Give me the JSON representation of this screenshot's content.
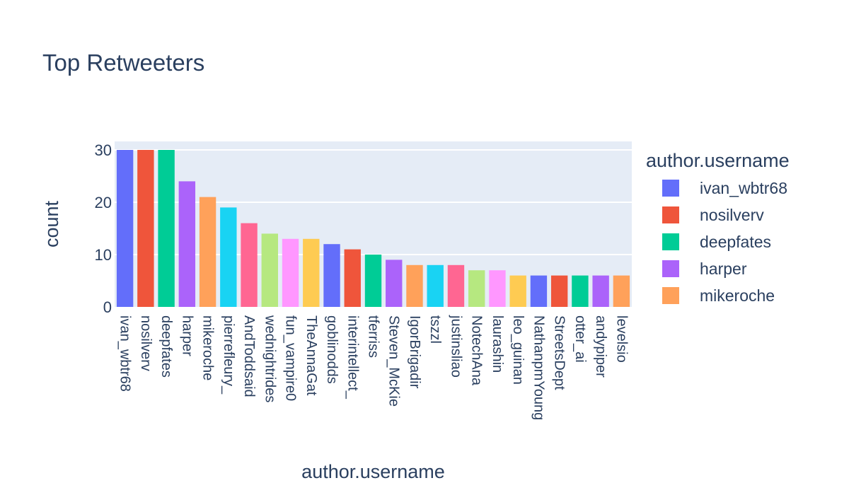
{
  "chart_data": {
    "type": "bar",
    "title": "Top Retweeters",
    "xlabel": "author.username",
    "ylabel": "count",
    "ylim": [
      0,
      30
    ],
    "yticks": [
      0,
      10,
      20,
      30
    ],
    "grid": true,
    "legend_position": "right",
    "legend_title": "author.username",
    "legend_entries": [
      "ivan_wbtr68",
      "nosilverv",
      "deepfates",
      "harper",
      "mikeroche"
    ],
    "categories": [
      "ivan_wbtr68",
      "nosilverv",
      "deepfates",
      "harper",
      "mikeroche",
      "pierrefleury_",
      "AndToddsaid",
      "wednightrides",
      "fun_vampire0",
      "TheAnnaGat",
      "goblinodds",
      "interintellect_",
      "tferriss",
      "Steven_McKie",
      "IgorBrigadir",
      "tszzl",
      "justinsliao",
      "NotechAna",
      "laurashin",
      "leo_guinan",
      "NathanpmYoung",
      "StreetsDept",
      "otter_ai",
      "andypiper",
      "levelsio"
    ],
    "values": [
      30,
      30,
      30,
      24,
      21,
      19,
      16,
      14,
      13,
      13,
      12,
      11,
      10,
      9,
      8,
      8,
      8,
      7,
      7,
      6,
      6,
      6,
      6,
      6,
      6
    ],
    "colors": [
      "#636efa",
      "#EF553B",
      "#00cc96",
      "#ab63fa",
      "#FFA15A",
      "#19d3f3",
      "#FF6692",
      "#B6E880",
      "#FF97FF",
      "#FECB52"
    ]
  }
}
